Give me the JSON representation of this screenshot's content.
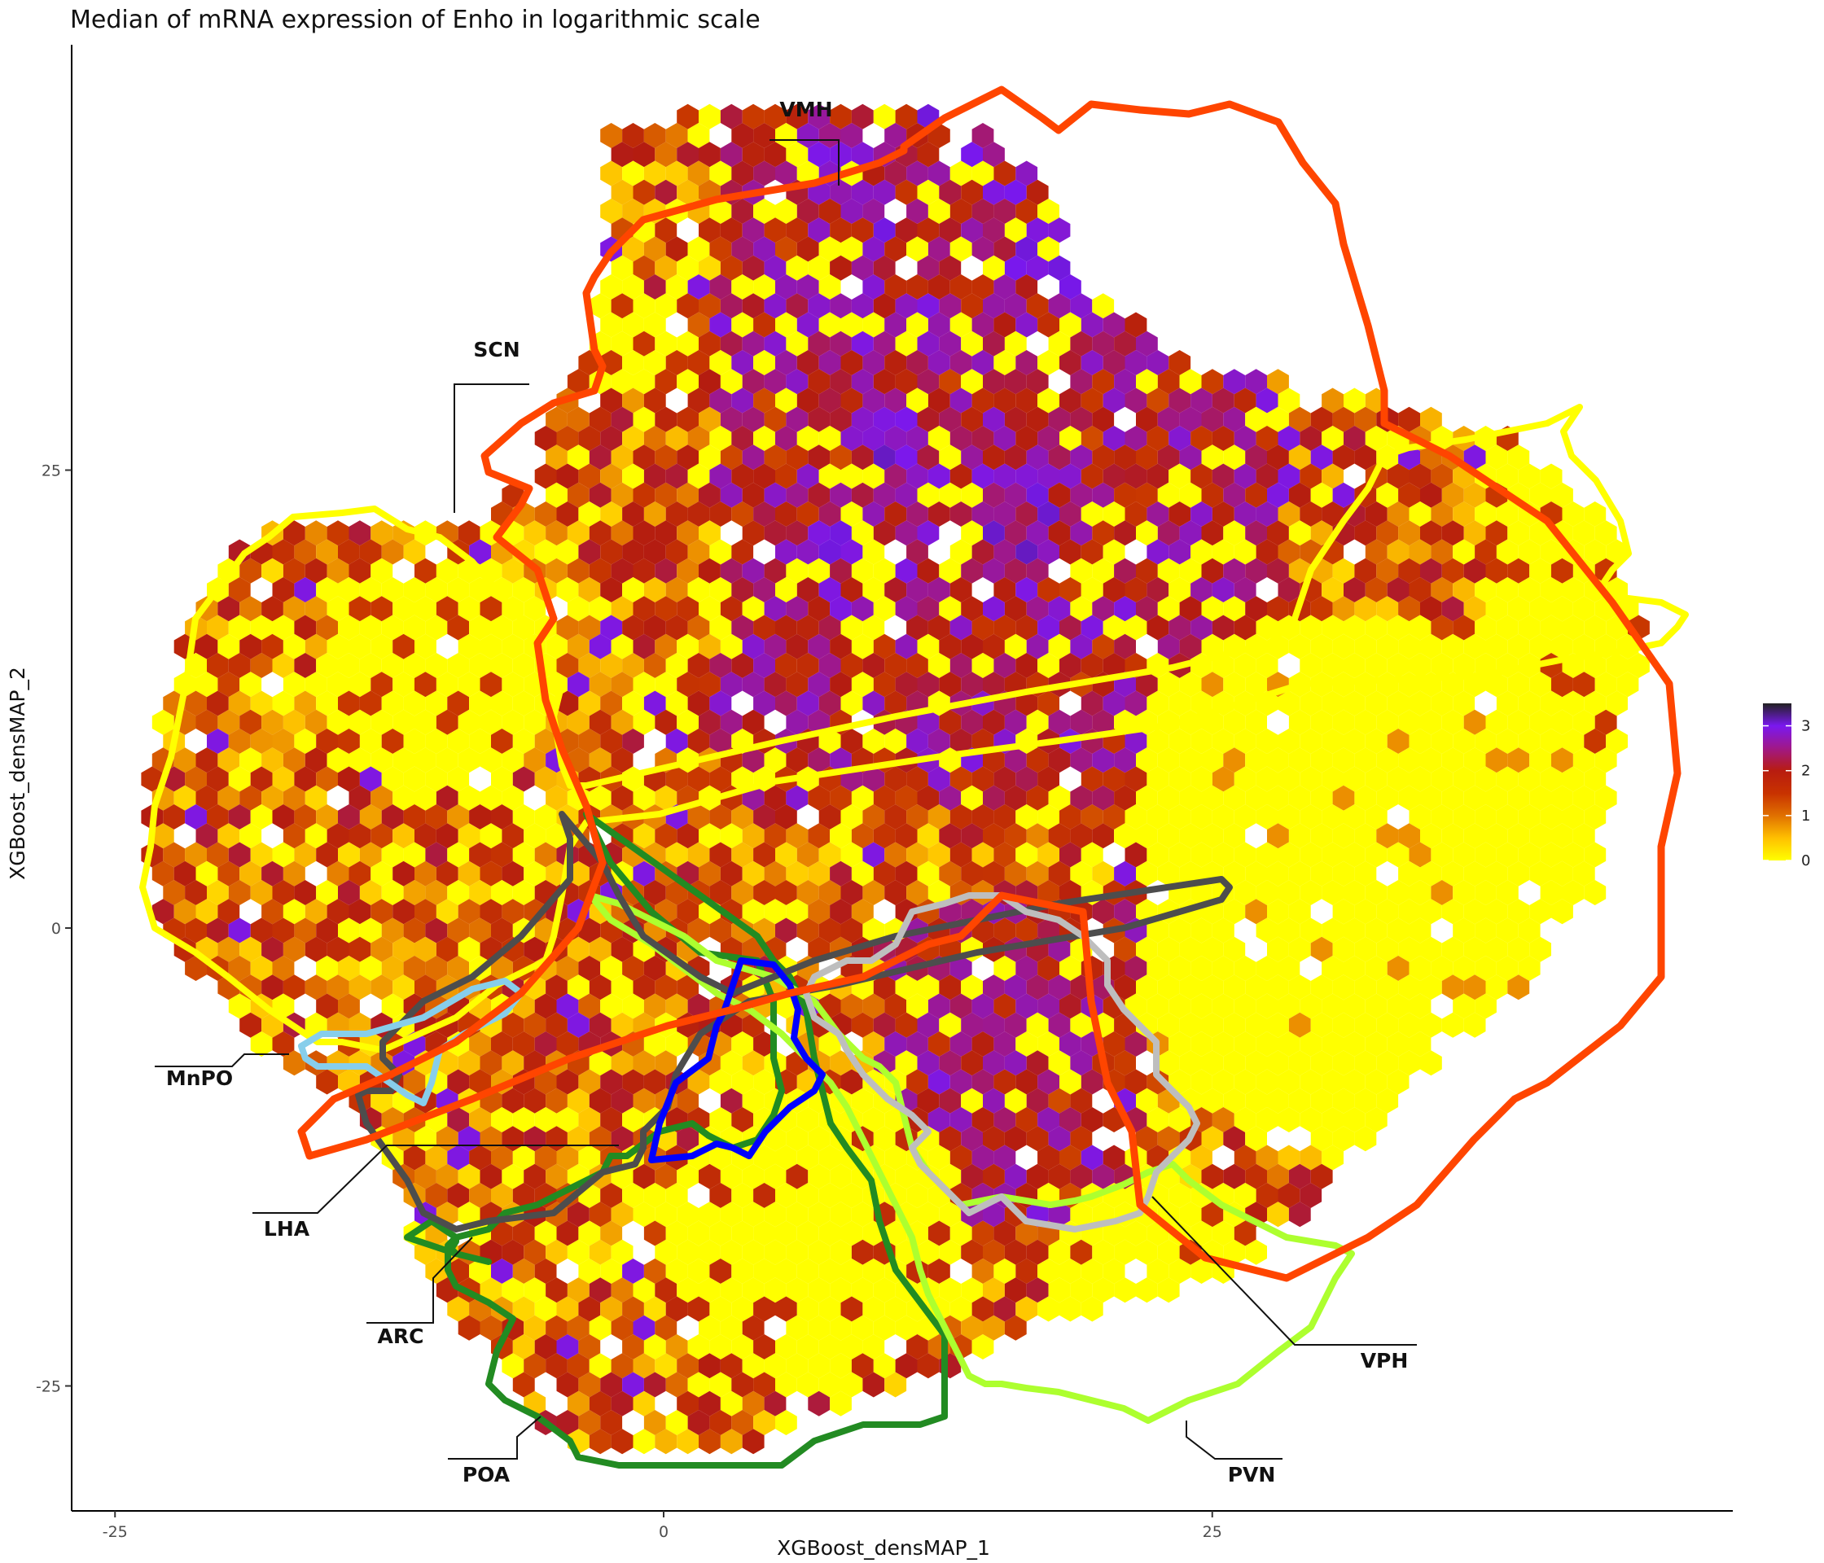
{
  "chart_data": {
    "type": "heatmap",
    "title": "Median of mRNA expression of Enho in logarithmic scale",
    "xlabel": "XGBoost_densMAP_1",
    "ylabel": "XGBoost_densMAP_2",
    "xlim": [
      -27,
      49
    ],
    "ylim": [
      -32,
      48
    ],
    "x_ticks": [
      -25,
      0,
      25
    ],
    "y_ticks": [
      -25,
      0,
      25
    ],
    "grid": false,
    "legend": {
      "position": "right",
      "ticks": [
        0,
        1,
        2,
        3
      ],
      "range": [
        0,
        3.5
      ],
      "colors": [
        "#ffff00",
        "#ffc000",
        "#e07000",
        "#c83200",
        "#b81c10",
        "#a01888",
        "#7a18f0",
        "#222222"
      ]
    },
    "regions": [
      {
        "name": "VMH",
        "color": "#ff4500"
      },
      {
        "name": "SCN",
        "color": "#ffff00"
      },
      {
        "name": "MnPO",
        "color": "#87ceeb"
      },
      {
        "name": "LHA",
        "color": "#4d4d4d"
      },
      {
        "name": "ARC",
        "color": "#0000ff"
      },
      {
        "name": "POA",
        "color": "#228b22"
      },
      {
        "name": "PVN",
        "color": "#adff2f"
      },
      {
        "name": "VPH",
        "color": "#bebebe"
      }
    ]
  }
}
